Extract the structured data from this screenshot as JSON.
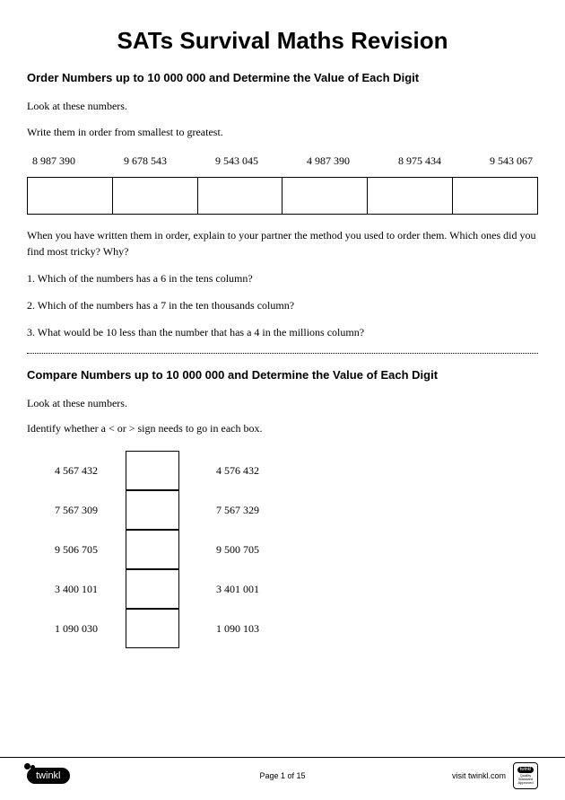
{
  "title": "SATs Survival Maths Revision",
  "section1": {
    "heading": "Order Numbers up to 10 000 000 and Determine the Value of Each Digit",
    "instruction1": "Look at these numbers.",
    "instruction2": "Write them in order from smallest to greatest.",
    "numbers": [
      "8 987 390",
      "9 678 543",
      "9 543 045",
      "4 987 390",
      "8 975 434",
      "9 543 067"
    ],
    "para": "When you have written them in order, explain to your partner the method you used to order them. Which ones did you find most tricky? Why?",
    "q1": "1. Which of the numbers has a 6 in the tens column?",
    "q2": "2. Which of the numbers has a 7 in the ten thousands column?",
    "q3": "3. What would be 10 less than the number that has a 4 in the millions column?"
  },
  "section2": {
    "heading": "Compare Numbers up to 10 000 000 and Determine the Value of Each Digit",
    "instruction1": "Look at these numbers.",
    "instruction2": "Identify whether a < or > sign needs to go in each box.",
    "rows": [
      {
        "left": "4 567 432",
        "right": "4 576 432"
      },
      {
        "left": "7 567 309",
        "right": "7 567 329"
      },
      {
        "left": "9 506 705",
        "right": "9 500 705"
      },
      {
        "left": "3 400 101",
        "right": "3 401 001"
      },
      {
        "left": "1 090 030",
        "right": "1 090 103"
      }
    ]
  },
  "footer": {
    "logo": "twinkl",
    "page": "Page 1 of 15",
    "visit": "visit twinkl.com",
    "badge_top": "twinkl",
    "badge_text": "Quality Standard Approved"
  }
}
